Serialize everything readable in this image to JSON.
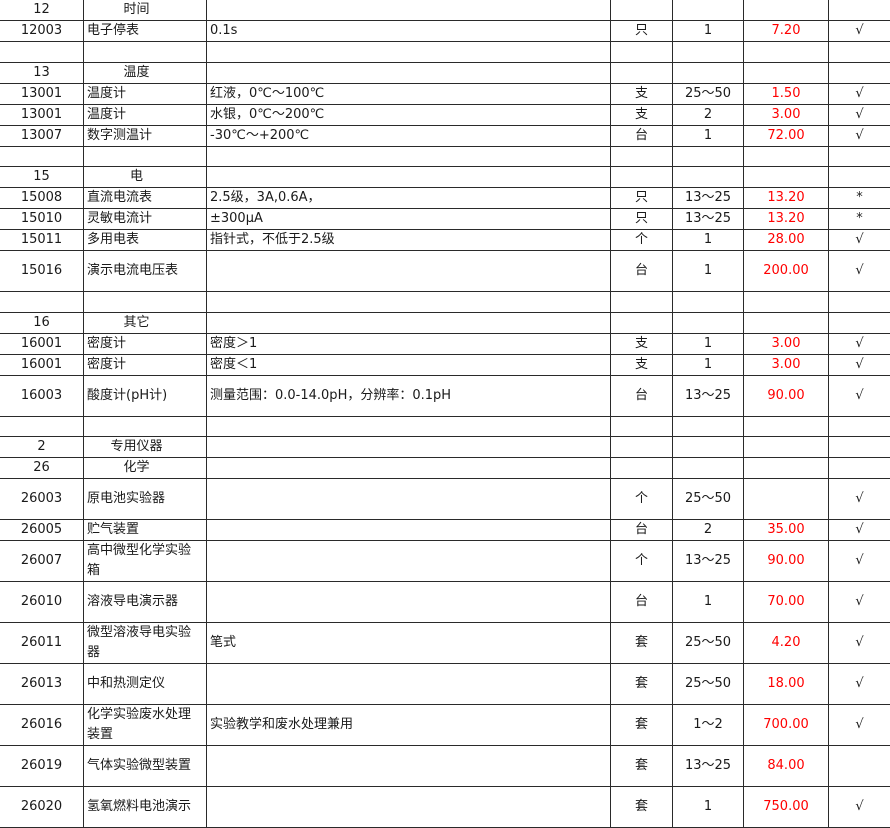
{
  "colors": {
    "price": "#ff0000",
    "grid": "#2a2a2a"
  },
  "rows": [
    {
      "code": "12",
      "name": "时间",
      "spec": "",
      "unit": "",
      "qty": "",
      "price": "",
      "mark": "",
      "category": true
    },
    {
      "code": "12003",
      "name": "电子停表",
      "spec": "0.1s",
      "unit": "只",
      "qty": "1",
      "price": "7.20",
      "mark": "√"
    },
    {
      "code": "",
      "name": "",
      "spec": "",
      "unit": "",
      "qty": "",
      "price": "",
      "mark": ""
    },
    {
      "code": "13",
      "name": "温度",
      "spec": "",
      "unit": "",
      "qty": "",
      "price": "",
      "mark": "",
      "category": true
    },
    {
      "code": "13001",
      "name": "温度计",
      "spec": "红液，0℃～100℃",
      "unit": "支",
      "qty": "25～50",
      "price": "1.50",
      "mark": "√"
    },
    {
      "code": "13001",
      "name": "温度计",
      "spec": "水银，0℃～200℃",
      "unit": "支",
      "qty": "2",
      "price": "3.00",
      "mark": "√"
    },
    {
      "code": "13007",
      "name": "数字测温计",
      "spec": "-30℃～+200℃",
      "unit": "台",
      "qty": "1",
      "price": "72.00",
      "mark": "√"
    },
    {
      "code": "",
      "name": "",
      "spec": "",
      "unit": "",
      "qty": "",
      "price": "",
      "mark": ""
    },
    {
      "code": "15",
      "name": "电",
      "spec": "",
      "unit": "",
      "qty": "",
      "price": "",
      "mark": "",
      "category": true
    },
    {
      "code": "15008",
      "name": "直流电流表",
      "spec": "2.5级，3A,0.6A，",
      "unit": "只",
      "qty": "13～25",
      "price": "13.20",
      "mark": "*"
    },
    {
      "code": "15010",
      "name": "灵敏电流计",
      "spec": "±300μA",
      "unit": "只",
      "qty": "13～25",
      "price": "13.20",
      "mark": "*"
    },
    {
      "code": "15011",
      "name": "多用电表",
      "spec": "指针式，不低于2.5级",
      "unit": "个",
      "qty": "1",
      "price": "28.00",
      "mark": "√"
    },
    {
      "code": "15016",
      "name": "演示电流电压表",
      "spec": "",
      "unit": "台",
      "qty": "1",
      "price": "200.00",
      "mark": "√"
    },
    {
      "code": "",
      "name": "",
      "spec": "",
      "unit": "",
      "qty": "",
      "price": "",
      "mark": ""
    },
    {
      "code": "16",
      "name": "其它",
      "spec": "",
      "unit": "",
      "qty": "",
      "price": "",
      "mark": "",
      "category": true
    },
    {
      "code": "16001",
      "name": "密度计",
      "spec": "密度＞1",
      "unit": "支",
      "qty": "1",
      "price": "3.00",
      "mark": "√"
    },
    {
      "code": "16001",
      "name": "密度计",
      "spec": "密度＜1",
      "unit": "支",
      "qty": "1",
      "price": "3.00",
      "mark": "√"
    },
    {
      "code": "16003",
      "name": "酸度计(pH计)",
      "spec": "测量范围：0.0-14.0pH，分辨率：0.1pH",
      "unit": "台",
      "qty": "13～25",
      "price": "90.00",
      "mark": "√"
    },
    {
      "code": "",
      "name": "",
      "spec": "",
      "unit": "",
      "qty": "",
      "price": "",
      "mark": ""
    },
    {
      "code": "2",
      "name": "专用仪器",
      "spec": "",
      "unit": "",
      "qty": "",
      "price": "",
      "mark": "",
      "category": true
    },
    {
      "code": "26",
      "name": "化学",
      "spec": "",
      "unit": "",
      "qty": "",
      "price": "",
      "mark": "",
      "category": true
    },
    {
      "code": "26003",
      "name": "原电池实验器",
      "spec": "",
      "unit": "个",
      "qty": "25～50",
      "price": "",
      "mark": "√"
    },
    {
      "code": "26005",
      "name": "贮气装置",
      "spec": "",
      "unit": "台",
      "qty": "2",
      "price": "35.00",
      "mark": "√"
    },
    {
      "code": "26007",
      "name": "高中微型化学实验箱",
      "spec": "",
      "unit": "个",
      "qty": "13～25",
      "price": "90.00",
      "mark": "√"
    },
    {
      "code": "26010",
      "name": "溶液导电演示器",
      "spec": "",
      "unit": "台",
      "qty": "1",
      "price": "70.00",
      "mark": "√"
    },
    {
      "code": "26011",
      "name": "微型溶液导电实验器",
      "spec": "笔式",
      "unit": "套",
      "qty": "25～50",
      "price": "4.20",
      "mark": "√"
    },
    {
      "code": "26013",
      "name": "中和热测定仪",
      "spec": "",
      "unit": "套",
      "qty": "25～50",
      "price": "18.00",
      "mark": "√"
    },
    {
      "code": "26016",
      "name": "化学实验废水处理装置",
      "spec": "实验教学和废水处理兼用",
      "unit": "套",
      "qty": "1～2",
      "price": "700.00",
      "mark": "√"
    },
    {
      "code": "26019",
      "name": "气体实验微型装置",
      "spec": "",
      "unit": "套",
      "qty": "13～25",
      "price": "84.00",
      "mark": ""
    },
    {
      "code": "26020",
      "name": "氢氧燃料电池演示",
      "spec": "",
      "unit": "套",
      "qty": "1",
      "price": "750.00",
      "mark": "√"
    }
  ]
}
